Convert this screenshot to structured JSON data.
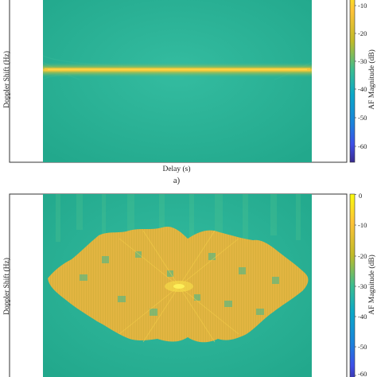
{
  "panels": [
    {
      "id": "a",
      "caption": "a)",
      "xlabel": "Delay (s)",
      "ylabel": "Doppler Shift (Hz)",
      "colorbar_label": "AF Magnitude (dB)",
      "colorbar_ticks": [
        "-10",
        "-20",
        "-30",
        "-40",
        "-50",
        "-60"
      ]
    },
    {
      "id": "b",
      "caption": "",
      "xlabel": "",
      "ylabel": "Doppler Shift (Hz)",
      "colorbar_label": "AF Magnitude (dB)",
      "colorbar_ticks": [
        "0",
        "-10",
        "-20",
        "-30",
        "-40",
        "-50",
        "-60"
      ]
    }
  ],
  "chart_data": [
    {
      "type": "heatmap",
      "title": "",
      "xlabel": "Delay (s)",
      "ylabel": "Doppler Shift (Hz)",
      "colorbar": {
        "label": "AF Magnitude (dB)",
        "range": [
          -64,
          0
        ],
        "ticks": [
          -10,
          -20,
          -30,
          -40,
          -50,
          -60
        ],
        "colormap": "parula"
      },
      "description_values": {
        "background_db": -25,
        "ridge_db": -3,
        "ridge_orientation": "horizontal at zero Doppler"
      }
    },
    {
      "type": "heatmap",
      "title": "",
      "xlabel": "",
      "ylabel": "Doppler Shift (Hz)",
      "colorbar": {
        "label": "AF Magnitude (dB)",
        "range": [
          -64,
          0
        ],
        "ticks": [
          0,
          -10,
          -20,
          -30,
          -40,
          -50,
          -60
        ],
        "colormap": "parula"
      },
      "description_values": {
        "background_db": -25,
        "sidelobe_db": -10,
        "peak_db": 0
      }
    }
  ],
  "colors": {
    "background_teal": "#2bb596",
    "ridge_yellow": "#f7c83a",
    "sidelobe_orange": "#f0b338",
    "peak": "#fbe64a"
  }
}
